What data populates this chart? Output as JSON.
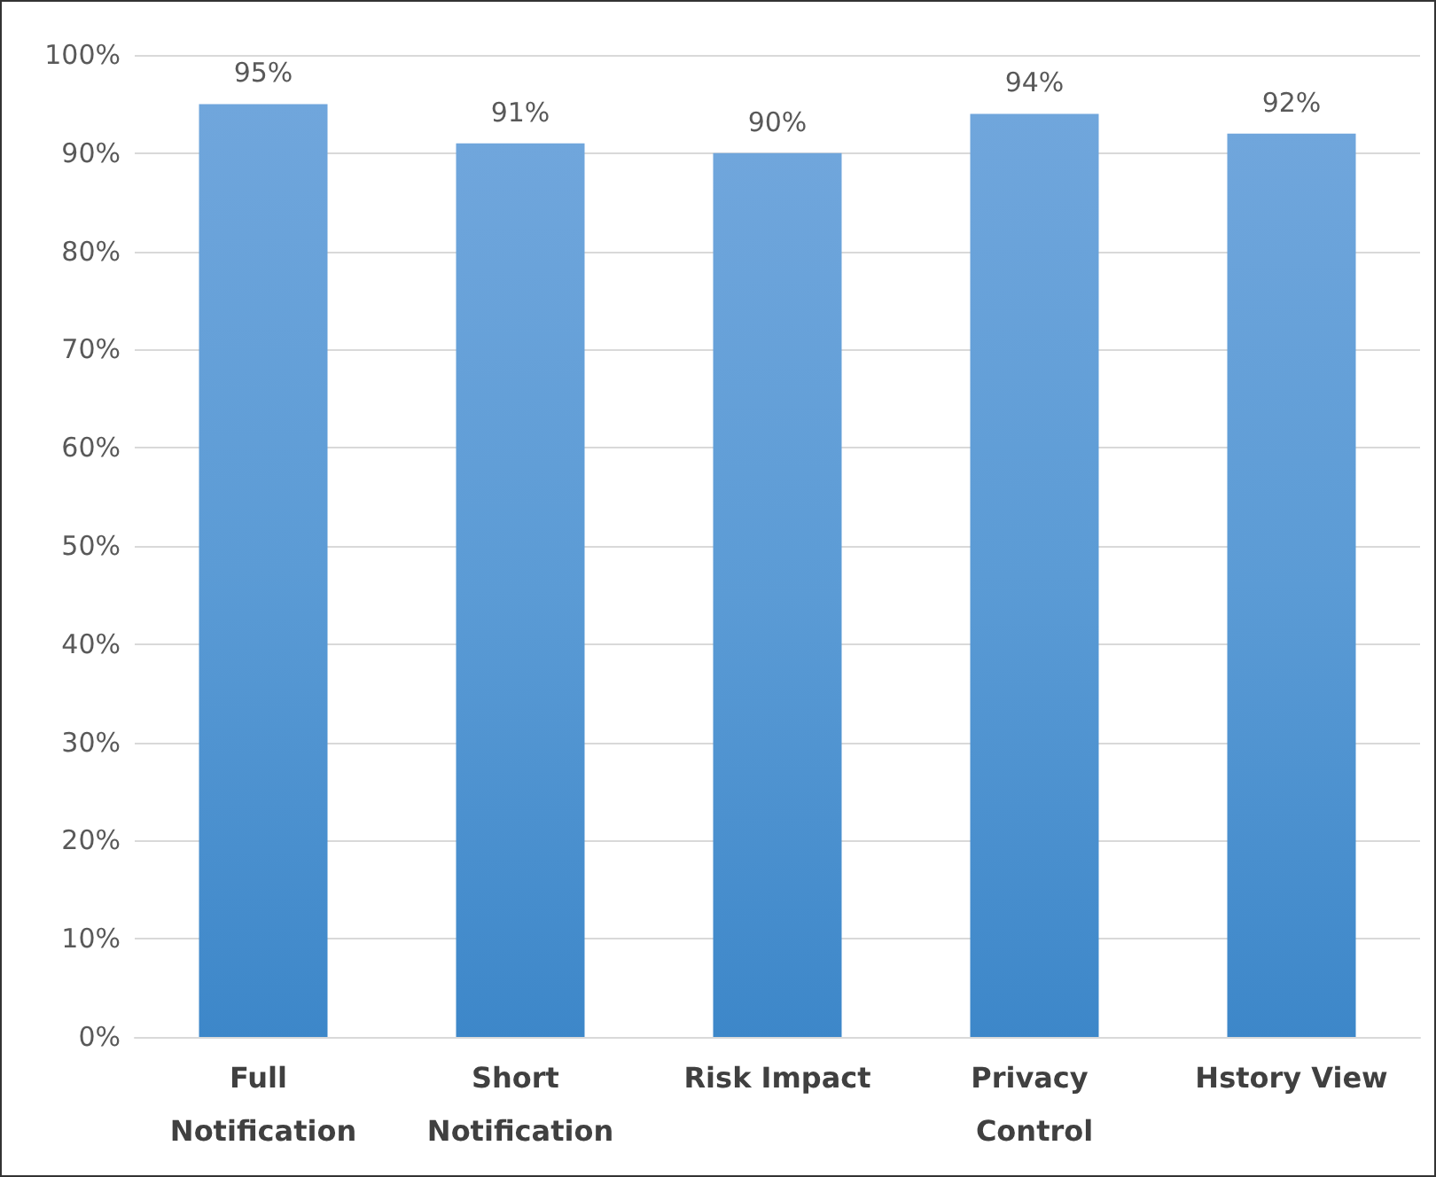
{
  "chart_data": {
    "type": "bar",
    "categories": [
      "Full Notification",
      "Short Notification",
      "Risk Impact",
      "Privacy Control",
      "Hstory View"
    ],
    "values": [
      95,
      91,
      90,
      94,
      92
    ],
    "value_labels": [
      "95%",
      "91%",
      "90%",
      "94%",
      "92%"
    ],
    "color": "#5b9bd5",
    "ylim": [
      0,
      100
    ],
    "yticks": [
      {
        "value": 0,
        "label": "0%"
      },
      {
        "value": 10,
        "label": "10%"
      },
      {
        "value": 20,
        "label": "20%"
      },
      {
        "value": 30,
        "label": "30%"
      },
      {
        "value": 40,
        "label": "40%"
      },
      {
        "value": 50,
        "label": "50%"
      },
      {
        "value": 60,
        "label": "60%"
      },
      {
        "value": 70,
        "label": "70%"
      },
      {
        "value": 80,
        "label": "80%"
      },
      {
        "value": 90,
        "label": "90%"
      },
      {
        "value": 100,
        "label": "100%"
      }
    ],
    "grid": "y"
  }
}
